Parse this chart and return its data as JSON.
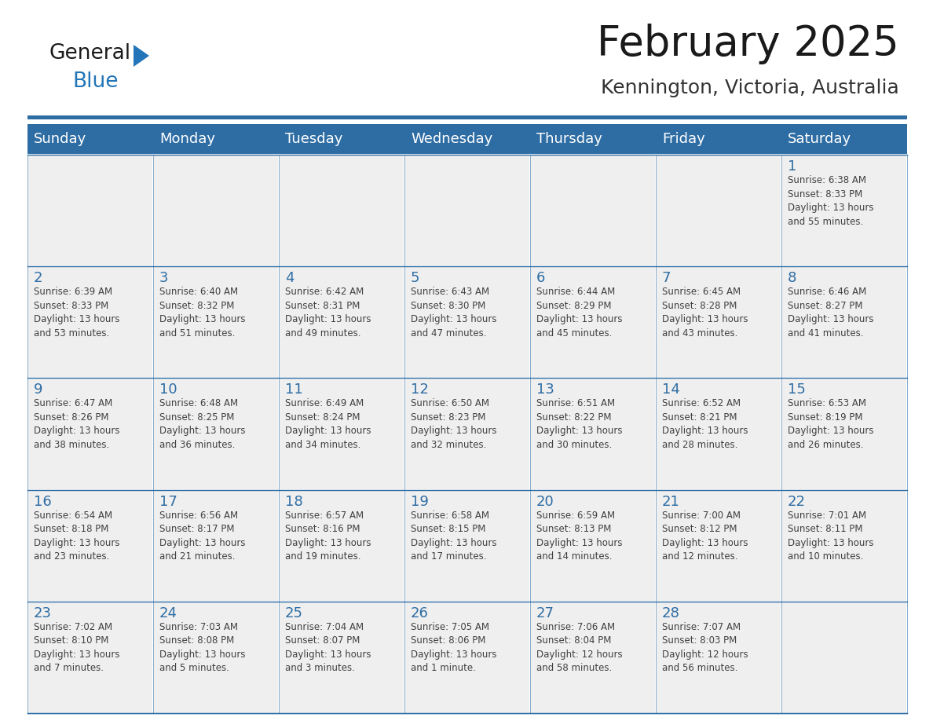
{
  "title": "February 2025",
  "subtitle": "Kennington, Victoria, Australia",
  "header_bg": "#2E6DA4",
  "header_text_color": "#FFFFFF",
  "cell_bg": "#EFEFEF",
  "day_number_color": "#2E6DA4",
  "detail_text_color": "#404040",
  "border_color": "#2E6DA4",
  "line_color": "#AAAAAA",
  "days_of_week": [
    "Sunday",
    "Monday",
    "Tuesday",
    "Wednesday",
    "Thursday",
    "Friday",
    "Saturday"
  ],
  "weeks": [
    [
      {
        "day": null,
        "text": ""
      },
      {
        "day": null,
        "text": ""
      },
      {
        "day": null,
        "text": ""
      },
      {
        "day": null,
        "text": ""
      },
      {
        "day": null,
        "text": ""
      },
      {
        "day": null,
        "text": ""
      },
      {
        "day": 1,
        "text": "Sunrise: 6:38 AM\nSunset: 8:33 PM\nDaylight: 13 hours\nand 55 minutes."
      }
    ],
    [
      {
        "day": 2,
        "text": "Sunrise: 6:39 AM\nSunset: 8:33 PM\nDaylight: 13 hours\nand 53 minutes."
      },
      {
        "day": 3,
        "text": "Sunrise: 6:40 AM\nSunset: 8:32 PM\nDaylight: 13 hours\nand 51 minutes."
      },
      {
        "day": 4,
        "text": "Sunrise: 6:42 AM\nSunset: 8:31 PM\nDaylight: 13 hours\nand 49 minutes."
      },
      {
        "day": 5,
        "text": "Sunrise: 6:43 AM\nSunset: 8:30 PM\nDaylight: 13 hours\nand 47 minutes."
      },
      {
        "day": 6,
        "text": "Sunrise: 6:44 AM\nSunset: 8:29 PM\nDaylight: 13 hours\nand 45 minutes."
      },
      {
        "day": 7,
        "text": "Sunrise: 6:45 AM\nSunset: 8:28 PM\nDaylight: 13 hours\nand 43 minutes."
      },
      {
        "day": 8,
        "text": "Sunrise: 6:46 AM\nSunset: 8:27 PM\nDaylight: 13 hours\nand 41 minutes."
      }
    ],
    [
      {
        "day": 9,
        "text": "Sunrise: 6:47 AM\nSunset: 8:26 PM\nDaylight: 13 hours\nand 38 minutes."
      },
      {
        "day": 10,
        "text": "Sunrise: 6:48 AM\nSunset: 8:25 PM\nDaylight: 13 hours\nand 36 minutes."
      },
      {
        "day": 11,
        "text": "Sunrise: 6:49 AM\nSunset: 8:24 PM\nDaylight: 13 hours\nand 34 minutes."
      },
      {
        "day": 12,
        "text": "Sunrise: 6:50 AM\nSunset: 8:23 PM\nDaylight: 13 hours\nand 32 minutes."
      },
      {
        "day": 13,
        "text": "Sunrise: 6:51 AM\nSunset: 8:22 PM\nDaylight: 13 hours\nand 30 minutes."
      },
      {
        "day": 14,
        "text": "Sunrise: 6:52 AM\nSunset: 8:21 PM\nDaylight: 13 hours\nand 28 minutes."
      },
      {
        "day": 15,
        "text": "Sunrise: 6:53 AM\nSunset: 8:19 PM\nDaylight: 13 hours\nand 26 minutes."
      }
    ],
    [
      {
        "day": 16,
        "text": "Sunrise: 6:54 AM\nSunset: 8:18 PM\nDaylight: 13 hours\nand 23 minutes."
      },
      {
        "day": 17,
        "text": "Sunrise: 6:56 AM\nSunset: 8:17 PM\nDaylight: 13 hours\nand 21 minutes."
      },
      {
        "day": 18,
        "text": "Sunrise: 6:57 AM\nSunset: 8:16 PM\nDaylight: 13 hours\nand 19 minutes."
      },
      {
        "day": 19,
        "text": "Sunrise: 6:58 AM\nSunset: 8:15 PM\nDaylight: 13 hours\nand 17 minutes."
      },
      {
        "day": 20,
        "text": "Sunrise: 6:59 AM\nSunset: 8:13 PM\nDaylight: 13 hours\nand 14 minutes."
      },
      {
        "day": 21,
        "text": "Sunrise: 7:00 AM\nSunset: 8:12 PM\nDaylight: 13 hours\nand 12 minutes."
      },
      {
        "day": 22,
        "text": "Sunrise: 7:01 AM\nSunset: 8:11 PM\nDaylight: 13 hours\nand 10 minutes."
      }
    ],
    [
      {
        "day": 23,
        "text": "Sunrise: 7:02 AM\nSunset: 8:10 PM\nDaylight: 13 hours\nand 7 minutes."
      },
      {
        "day": 24,
        "text": "Sunrise: 7:03 AM\nSunset: 8:08 PM\nDaylight: 13 hours\nand 5 minutes."
      },
      {
        "day": 25,
        "text": "Sunrise: 7:04 AM\nSunset: 8:07 PM\nDaylight: 13 hours\nand 3 minutes."
      },
      {
        "day": 26,
        "text": "Sunrise: 7:05 AM\nSunset: 8:06 PM\nDaylight: 13 hours\nand 1 minute."
      },
      {
        "day": 27,
        "text": "Sunrise: 7:06 AM\nSunset: 8:04 PM\nDaylight: 12 hours\nand 58 minutes."
      },
      {
        "day": 28,
        "text": "Sunrise: 7:07 AM\nSunset: 8:03 PM\nDaylight: 12 hours\nand 56 minutes."
      },
      {
        "day": null,
        "text": ""
      }
    ]
  ],
  "logo_general_color": "#1a1a1a",
  "logo_blue_color": "#2175B8",
  "logo_triangle_color": "#2175B8",
  "title_color": "#1a1a1a",
  "subtitle_color": "#333333",
  "title_fontsize": 38,
  "subtitle_fontsize": 18,
  "header_fontsize": 13,
  "day_num_fontsize": 13,
  "detail_fontsize": 8.5
}
